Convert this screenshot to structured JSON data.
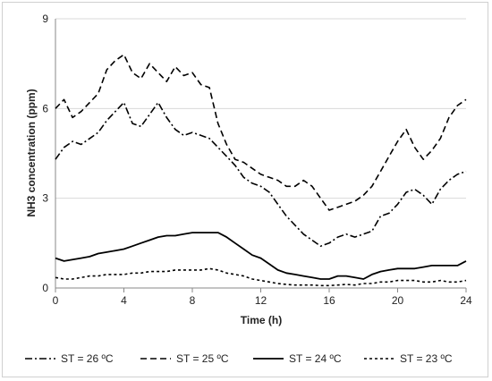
{
  "chart_data": {
    "type": "line",
    "title": "",
    "xlabel": "Time (h)",
    "ylabel": "NH3 concentration (ppm)",
    "xlim": [
      0,
      24
    ],
    "ylim": [
      0,
      9
    ],
    "xticks": [
      "0",
      "4",
      "8",
      "12",
      "16",
      "20",
      "24"
    ],
    "yticks": [
      "0",
      "3",
      "6",
      "9"
    ],
    "grid": "horizontal",
    "legend_position": "bottom",
    "x": [
      0,
      0.5,
      1,
      1.5,
      2,
      2.5,
      3,
      3.5,
      4,
      4.5,
      5,
      5.5,
      6,
      6.5,
      7,
      7.5,
      8,
      8.5,
      9,
      9.5,
      10,
      10.5,
      11,
      11.5,
      12,
      12.5,
      13,
      13.5,
      14,
      14.5,
      15,
      15.5,
      16,
      16.5,
      17,
      17.5,
      18,
      18.5,
      19,
      19.5,
      20,
      20.5,
      21,
      21.5,
      22,
      22.5,
      23,
      23.5,
      24
    ],
    "series": [
      {
        "name": "ST = 26 ºC",
        "dash": "dashdot",
        "values": [
          4.3,
          4.7,
          4.9,
          4.8,
          5.0,
          5.2,
          5.6,
          5.9,
          6.2,
          5.5,
          5.4,
          5.8,
          6.2,
          5.7,
          5.3,
          5.1,
          5.2,
          5.1,
          5.0,
          4.7,
          4.4,
          4.1,
          3.7,
          3.5,
          3.4,
          3.2,
          2.8,
          2.4,
          2.1,
          1.8,
          1.6,
          1.4,
          1.5,
          1.7,
          1.8,
          1.7,
          1.8,
          1.9,
          2.4,
          2.5,
          2.8,
          3.2,
          3.3,
          3.1,
          2.8,
          3.3,
          3.6,
          3.8,
          3.9
        ]
      },
      {
        "name": "ST = 25 ºC",
        "dash": "dash",
        "values": [
          6.0,
          6.3,
          5.7,
          5.9,
          6.2,
          6.5,
          7.3,
          7.6,
          7.8,
          7.2,
          7.0,
          7.5,
          7.2,
          6.9,
          7.4,
          7.1,
          7.2,
          6.8,
          6.7,
          5.5,
          4.8,
          4.3,
          4.2,
          4.0,
          3.8,
          3.7,
          3.6,
          3.4,
          3.4,
          3.6,
          3.4,
          3.0,
          2.6,
          2.7,
          2.8,
          2.9,
          3.1,
          3.4,
          3.9,
          4.4,
          4.9,
          5.3,
          4.7,
          4.3,
          4.6,
          5.0,
          5.7,
          6.1,
          6.3
        ]
      },
      {
        "name": "ST = 24 ºC",
        "dash": "solid",
        "values": [
          1.0,
          0.9,
          0.95,
          1.0,
          1.05,
          1.15,
          1.2,
          1.25,
          1.3,
          1.4,
          1.5,
          1.6,
          1.7,
          1.75,
          1.75,
          1.8,
          1.85,
          1.85,
          1.85,
          1.85,
          1.7,
          1.5,
          1.3,
          1.1,
          1.0,
          0.8,
          0.6,
          0.5,
          0.45,
          0.4,
          0.35,
          0.3,
          0.3,
          0.4,
          0.4,
          0.35,
          0.3,
          0.45,
          0.55,
          0.6,
          0.65,
          0.65,
          0.65,
          0.7,
          0.75,
          0.75,
          0.75,
          0.75,
          0.9
        ]
      },
      {
        "name": "ST = 23 ºC",
        "dash": "shortdash",
        "values": [
          0.35,
          0.3,
          0.3,
          0.35,
          0.4,
          0.4,
          0.45,
          0.45,
          0.45,
          0.5,
          0.5,
          0.55,
          0.55,
          0.55,
          0.6,
          0.6,
          0.6,
          0.6,
          0.65,
          0.6,
          0.5,
          0.45,
          0.4,
          0.3,
          0.25,
          0.2,
          0.15,
          0.12,
          0.1,
          0.1,
          0.1,
          0.08,
          0.08,
          0.1,
          0.12,
          0.1,
          0.15,
          0.15,
          0.2,
          0.2,
          0.25,
          0.25,
          0.25,
          0.2,
          0.2,
          0.25,
          0.2,
          0.2,
          0.25
        ]
      }
    ]
  }
}
